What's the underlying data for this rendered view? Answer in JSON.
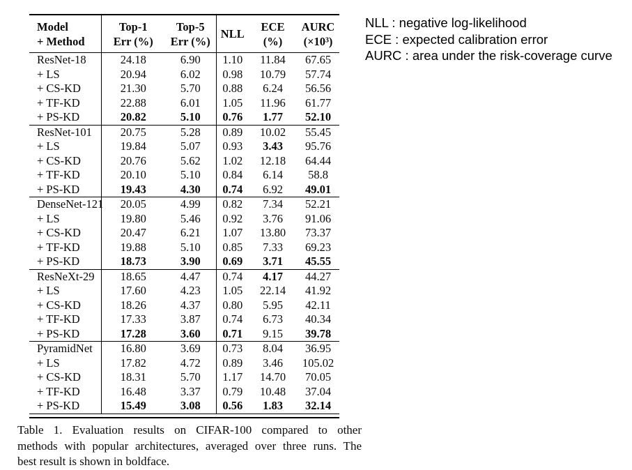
{
  "table": {
    "header": {
      "model_line1": "Model",
      "model_line2": "+ Method",
      "top1_line1": "Top-1",
      "top1_line2": "Err (%)",
      "top5_line1": "Top-5",
      "top5_line2": "Err (%)",
      "nll": "NLL",
      "ece_line1": "ECE",
      "ece_line2": "(%)",
      "aurc_line1": "AURC",
      "aurc_line2": "(×10³)"
    },
    "groups": [
      {
        "rows": [
          {
            "method": "ResNet-18",
            "values": [
              "24.18",
              "6.90",
              "1.10",
              "11.84",
              "67.65"
            ],
            "bold": [
              false,
              false,
              false,
              false,
              false
            ]
          },
          {
            "method": "+ LS",
            "values": [
              "20.94",
              "6.02",
              "0.98",
              "10.79",
              "57.74"
            ],
            "bold": [
              false,
              false,
              false,
              false,
              false
            ]
          },
          {
            "method": "+ CS-KD",
            "values": [
              "21.30",
              "5.70",
              "0.88",
              "6.24",
              "56.56"
            ],
            "bold": [
              false,
              false,
              false,
              false,
              false
            ]
          },
          {
            "method": "+ TF-KD",
            "values": [
              "22.88",
              "6.01",
              "1.05",
              "11.96",
              "61.77"
            ],
            "bold": [
              false,
              false,
              false,
              false,
              false
            ]
          },
          {
            "method": "+ PS-KD",
            "values": [
              "20.82",
              "5.10",
              "0.76",
              "1.77",
              "52.10"
            ],
            "bold": [
              true,
              true,
              true,
              true,
              true
            ]
          }
        ]
      },
      {
        "rows": [
          {
            "method": "ResNet-101",
            "values": [
              "20.75",
              "5.28",
              "0.89",
              "10.02",
              "55.45"
            ],
            "bold": [
              false,
              false,
              false,
              false,
              false
            ]
          },
          {
            "method": "+ LS",
            "values": [
              "19.84",
              "5.07",
              "0.93",
              "3.43",
              "95.76"
            ],
            "bold": [
              false,
              false,
              false,
              true,
              false
            ]
          },
          {
            "method": "+ CS-KD",
            "values": [
              "20.76",
              "5.62",
              "1.02",
              "12.18",
              "64.44"
            ],
            "bold": [
              false,
              false,
              false,
              false,
              false
            ]
          },
          {
            "method": "+ TF-KD",
            "values": [
              "20.10",
              "5.10",
              "0.84",
              "6.14",
              "58.8"
            ],
            "bold": [
              false,
              false,
              false,
              false,
              false
            ]
          },
          {
            "method": "+ PS-KD",
            "values": [
              "19.43",
              "4.30",
              "0.74",
              "6.92",
              "49.01"
            ],
            "bold": [
              true,
              true,
              true,
              false,
              true
            ]
          }
        ]
      },
      {
        "rows": [
          {
            "method": "DenseNet-121",
            "values": [
              "20.05",
              "4.99",
              "0.82",
              "7.34",
              "52.21"
            ],
            "bold": [
              false,
              false,
              false,
              false,
              false
            ]
          },
          {
            "method": "+ LS",
            "values": [
              "19.80",
              "5.46",
              "0.92",
              "3.76",
              "91.06"
            ],
            "bold": [
              false,
              false,
              false,
              false,
              false
            ]
          },
          {
            "method": "+ CS-KD",
            "values": [
              "20.47",
              "6.21",
              "1.07",
              "13.80",
              "73.37"
            ],
            "bold": [
              false,
              false,
              false,
              false,
              false
            ]
          },
          {
            "method": "+ TF-KD",
            "values": [
              "19.88",
              "5.10",
              "0.85",
              "7.33",
              "69.23"
            ],
            "bold": [
              false,
              false,
              false,
              false,
              false
            ]
          },
          {
            "method": "+ PS-KD",
            "values": [
              "18.73",
              "3.90",
              "0.69",
              "3.71",
              "45.55"
            ],
            "bold": [
              true,
              true,
              true,
              true,
              true
            ]
          }
        ]
      },
      {
        "rows": [
          {
            "method": "ResNeXt-29",
            "values": [
              "18.65",
              "4.47",
              "0.74",
              "4.17",
              "44.27"
            ],
            "bold": [
              false,
              false,
              false,
              true,
              false
            ]
          },
          {
            "method": "+ LS",
            "values": [
              "17.60",
              "4.23",
              "1.05",
              "22.14",
              "41.92"
            ],
            "bold": [
              false,
              false,
              false,
              false,
              false
            ]
          },
          {
            "method": "+ CS-KD",
            "values": [
              "18.26",
              "4.37",
              "0.80",
              "5.95",
              "42.11"
            ],
            "bold": [
              false,
              false,
              false,
              false,
              false
            ]
          },
          {
            "method": "+ TF-KD",
            "values": [
              "17.33",
              "3.87",
              "0.74",
              "6.73",
              "40.34"
            ],
            "bold": [
              false,
              false,
              false,
              false,
              false
            ]
          },
          {
            "method": "+ PS-KD",
            "values": [
              "17.28",
              "3.60",
              "0.71",
              "9.15",
              "39.78"
            ],
            "bold": [
              true,
              true,
              true,
              false,
              true
            ]
          }
        ]
      },
      {
        "rows": [
          {
            "method": "PyramidNet",
            "values": [
              "16.80",
              "3.69",
              "0.73",
              "8.04",
              "36.95"
            ],
            "bold": [
              false,
              false,
              false,
              false,
              false
            ]
          },
          {
            "method": "+ LS",
            "values": [
              "17.82",
              "4.72",
              "0.89",
              "3.46",
              "105.02"
            ],
            "bold": [
              false,
              false,
              false,
              false,
              false
            ]
          },
          {
            "method": "+ CS-KD",
            "values": [
              "18.31",
              "5.70",
              "1.17",
              "14.70",
              "70.05"
            ],
            "bold": [
              false,
              false,
              false,
              false,
              false
            ]
          },
          {
            "method": "+ TF-KD",
            "values": [
              "16.48",
              "3.37",
              "0.79",
              "10.48",
              "37.04"
            ],
            "bold": [
              false,
              false,
              false,
              false,
              false
            ]
          },
          {
            "method": "+ PS-KD",
            "values": [
              "15.49",
              "3.08",
              "0.56",
              "1.83",
              "32.14"
            ],
            "bold": [
              true,
              true,
              true,
              true,
              true
            ]
          }
        ]
      }
    ]
  },
  "legend": {
    "lines": [
      "NLL : negative log-likelihood",
      "ECE : expected calibration error",
      "AURC : area under the risk-coverage curve"
    ]
  },
  "caption": {
    "lines": [
      "Table 1. Evaluation results on CIFAR-100 compared to other",
      "methods with popular architectures, averaged over three runs. The",
      "best result is shown in boldface."
    ]
  }
}
